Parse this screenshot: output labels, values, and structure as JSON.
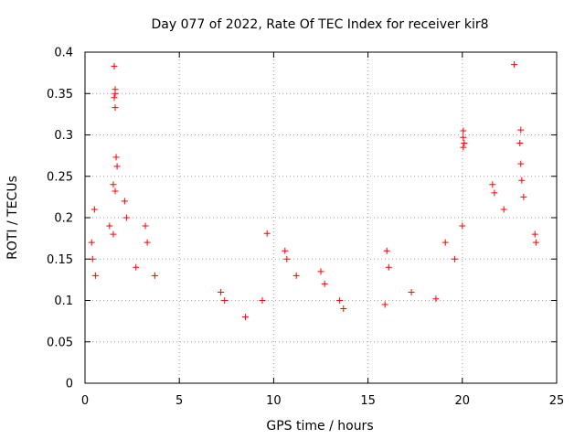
{
  "chart_data": {
    "type": "scatter",
    "title": "Day 077 of 2022, Rate Of TEC Index for receiver kir8",
    "xlabel": "GPS time / hours",
    "ylabel": "ROTI / TECUs",
    "xlim": [
      0,
      25
    ],
    "ylim": [
      0,
      0.4
    ],
    "xticks": [
      "0",
      "5",
      "10",
      "15",
      "20",
      "25"
    ],
    "yticks": [
      "0",
      "0.05",
      "0.1",
      "0.15",
      "0.2",
      "0.25",
      "0.3",
      "0.35",
      "0.4"
    ],
    "grid": true,
    "marker": "+",
    "color": "#ff0000",
    "series": [
      {
        "points": [
          [
            1.55,
            0.383
          ],
          [
            1.6,
            0.355
          ],
          [
            1.6,
            0.35
          ],
          [
            1.55,
            0.345
          ],
          [
            1.6,
            0.333
          ],
          [
            1.65,
            0.273
          ],
          [
            1.7,
            0.262
          ],
          [
            1.5,
            0.24
          ],
          [
            1.6,
            0.232
          ],
          [
            0.5,
            0.21
          ],
          [
            0.35,
            0.17
          ],
          [
            0.4,
            0.15
          ],
          [
            0.55,
            0.13
          ],
          [
            2.1,
            0.22
          ],
          [
            2.2,
            0.2
          ],
          [
            1.3,
            0.19
          ],
          [
            1.5,
            0.18
          ],
          [
            3.2,
            0.19
          ],
          [
            3.3,
            0.17
          ],
          [
            2.7,
            0.14
          ],
          [
            3.7,
            0.13
          ],
          [
            9.65,
            0.181
          ],
          [
            10.6,
            0.16
          ],
          [
            10.7,
            0.15
          ],
          [
            11.2,
            0.13
          ],
          [
            12.5,
            0.135
          ],
          [
            12.7,
            0.12
          ],
          [
            13.5,
            0.1
          ],
          [
            13.7,
            0.09
          ],
          [
            7.2,
            0.11
          ],
          [
            7.4,
            0.1
          ],
          [
            8.5,
            0.08
          ],
          [
            9.4,
            0.1
          ],
          [
            16.0,
            0.16
          ],
          [
            16.1,
            0.14
          ],
          [
            15.9,
            0.095
          ],
          [
            17.3,
            0.11
          ],
          [
            18.6,
            0.102
          ],
          [
            19.1,
            0.17
          ],
          [
            19.6,
            0.15
          ],
          [
            20.0,
            0.19
          ],
          [
            20.05,
            0.305
          ],
          [
            20.05,
            0.297
          ],
          [
            20.1,
            0.29
          ],
          [
            20.05,
            0.285
          ],
          [
            21.6,
            0.24
          ],
          [
            21.7,
            0.23
          ],
          [
            22.2,
            0.21
          ],
          [
            22.75,
            0.385
          ],
          [
            23.1,
            0.306
          ],
          [
            23.05,
            0.29
          ],
          [
            23.1,
            0.265
          ],
          [
            23.15,
            0.245
          ],
          [
            23.25,
            0.225
          ],
          [
            23.85,
            0.18
          ],
          [
            23.9,
            0.17
          ]
        ]
      }
    ]
  }
}
